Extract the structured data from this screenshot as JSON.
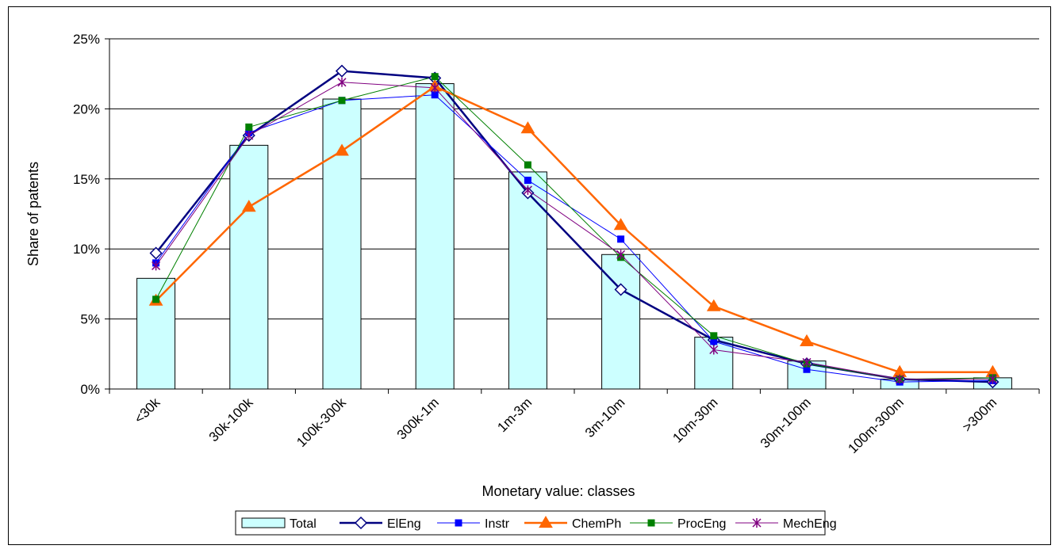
{
  "chart_data": {
    "type": "bar",
    "title": "",
    "xlabel": "Monetary value: classes",
    "ylabel": "Share of patents",
    "ylim": [
      0,
      25
    ],
    "yticks": [
      0,
      5,
      10,
      15,
      20,
      25
    ],
    "ytick_labels": [
      "0%",
      "5%",
      "10%",
      "15%",
      "20%",
      "25%"
    ],
    "grid": "horizontal",
    "legend_position": "bottom",
    "categories": [
      "<30k",
      "30k-100k",
      "100k-300k",
      "300k-1m",
      "1m-3m",
      "3m-10m",
      "10m-30m",
      "30m-100m",
      "100m-300m",
      ">300m"
    ],
    "series": [
      {
        "name": "Total",
        "type": "bar",
        "color": "#ccffff",
        "values": [
          7.9,
          17.4,
          20.7,
          21.8,
          15.5,
          9.6,
          3.7,
          2.0,
          0.7,
          0.8
        ]
      },
      {
        "name": "ElEng",
        "type": "line",
        "color": "#000080",
        "marker": "diamond",
        "values": [
          9.7,
          18.1,
          22.7,
          22.2,
          14.0,
          7.1,
          3.5,
          1.8,
          0.7,
          0.5
        ]
      },
      {
        "name": "Instr",
        "type": "line",
        "color": "#0000ff",
        "marker": "square",
        "values": [
          9.0,
          18.3,
          20.6,
          21.0,
          14.9,
          10.7,
          3.4,
          1.4,
          0.5,
          0.6
        ]
      },
      {
        "name": "ChemPh",
        "type": "line",
        "color": "#ff6600",
        "marker": "triangle",
        "values": [
          6.3,
          13.0,
          17.0,
          21.6,
          18.6,
          11.7,
          5.9,
          3.4,
          1.2,
          1.2
        ]
      },
      {
        "name": "ProcEng",
        "type": "line",
        "color": "#008000",
        "marker": "square",
        "values": [
          6.4,
          18.7,
          20.6,
          22.3,
          16.0,
          9.4,
          3.8,
          1.8,
          0.7,
          0.8
        ]
      },
      {
        "name": "MechEng",
        "type": "line",
        "color": "#800080",
        "marker": "star",
        "values": [
          8.8,
          18.1,
          21.9,
          21.5,
          14.2,
          9.6,
          2.8,
          1.9,
          0.7,
          0.7
        ]
      }
    ]
  }
}
